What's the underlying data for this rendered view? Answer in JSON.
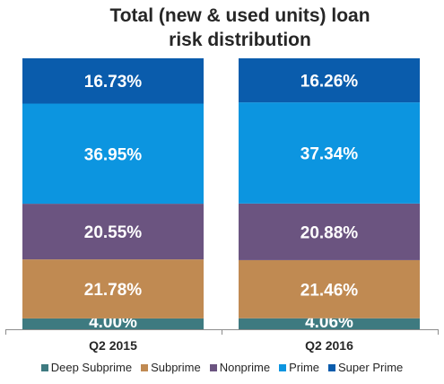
{
  "chart_data": {
    "type": "bar",
    "stacked": true,
    "title": "Total (new & used units) loan\nrisk distribution",
    "title_lines": [
      "Total (new & used units) loan",
      "risk distribution"
    ],
    "categories": [
      "Q2 2015",
      "Q2 2016"
    ],
    "series": [
      {
        "name": "Deep Subprime",
        "color": "#3e7a80",
        "values": [
          4.0,
          4.06
        ],
        "labels": [
          "4.00%",
          "4.06%"
        ]
      },
      {
        "name": "Subprime",
        "color": "#c08a52",
        "values": [
          21.78,
          21.46
        ],
        "labels": [
          "21.78%",
          "21.46%"
        ]
      },
      {
        "name": "Nonprime",
        "color": "#6b5480",
        "values": [
          20.55,
          20.88
        ],
        "labels": [
          "20.55%",
          "20.88%"
        ]
      },
      {
        "name": "Prime",
        "color": "#0c95e0",
        "values": [
          36.95,
          37.34
        ],
        "labels": [
          "36.95%",
          "37.34%"
        ]
      },
      {
        "name": "Super Prime",
        "color": "#0a5cac",
        "values": [
          16.73,
          16.26
        ],
        "labels": [
          "16.73%",
          "16.26%"
        ]
      }
    ],
    "ylim": [
      0,
      100
    ],
    "grid": false,
    "legend_position": "bottom"
  }
}
